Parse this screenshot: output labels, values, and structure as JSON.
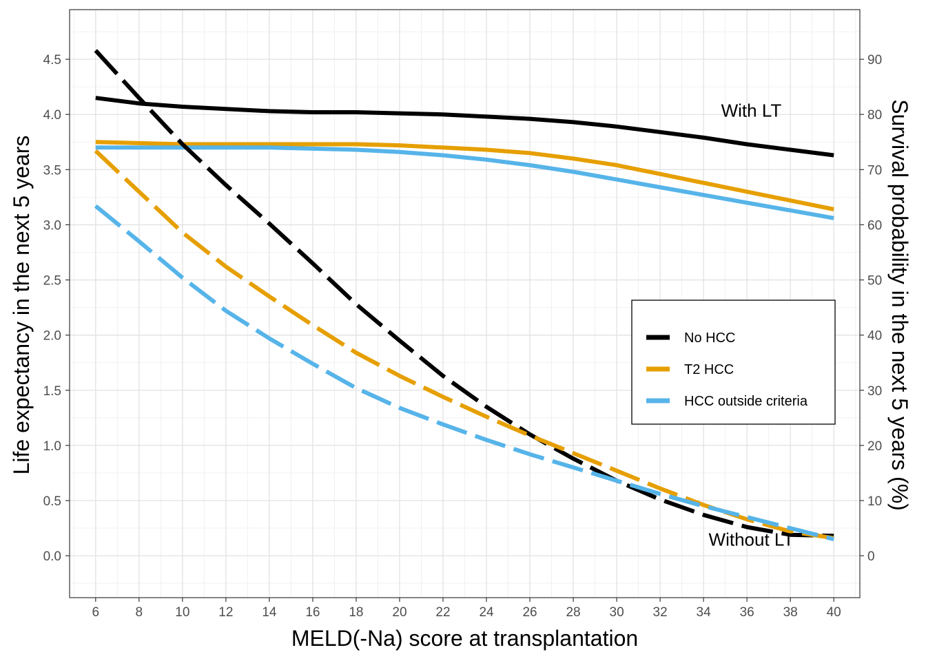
{
  "chart_data": {
    "type": "line",
    "xlabel": "MELD(-Na) score at transplantation",
    "ylabel": "Life expectancy in the next 5 years",
    "y2label": "Survival probability in the next 5 years (%)",
    "xlim": [
      4.8,
      41.2
    ],
    "ylim": [
      -0.38,
      4.95
    ],
    "x_ticks": [
      6,
      8,
      10,
      12,
      14,
      16,
      18,
      20,
      22,
      24,
      26,
      28,
      30,
      32,
      34,
      36,
      38,
      40
    ],
    "y_ticks": [
      0.0,
      0.5,
      1.0,
      1.5,
      2.0,
      2.5,
      3.0,
      3.5,
      4.0,
      4.5
    ],
    "y_tick_labels": [
      "0.0",
      "0.5",
      "1.0",
      "1.5",
      "2.0",
      "2.5",
      "3.0",
      "3.5",
      "4.0",
      "4.5"
    ],
    "y2_ticks": [
      0,
      10,
      20,
      30,
      40,
      50,
      60,
      70,
      80,
      90
    ],
    "y2_scale": 20,
    "grid": true,
    "legend_position": "right",
    "x": [
      6,
      8,
      10,
      12,
      14,
      16,
      18,
      20,
      22,
      24,
      26,
      28,
      30,
      32,
      34,
      36,
      38,
      40
    ],
    "series": [
      {
        "name": "No HCC",
        "group": "With LT",
        "color": "#000000",
        "dashed": false,
        "values": [
          4.15,
          4.1,
          4.07,
          4.05,
          4.03,
          4.02,
          4.02,
          4.01,
          4.0,
          3.98,
          3.96,
          3.93,
          3.89,
          3.84,
          3.79,
          3.73,
          3.68,
          3.63
        ]
      },
      {
        "name": "T2 HCC",
        "group": "With LT",
        "color": "#E69F00",
        "dashed": false,
        "values": [
          3.75,
          3.74,
          3.73,
          3.73,
          3.73,
          3.73,
          3.73,
          3.72,
          3.7,
          3.68,
          3.65,
          3.6,
          3.54,
          3.46,
          3.38,
          3.3,
          3.22,
          3.14
        ]
      },
      {
        "name": "HCC outside criteria",
        "group": "With LT",
        "color": "#56B4E9",
        "dashed": false,
        "values": [
          3.7,
          3.7,
          3.7,
          3.7,
          3.7,
          3.69,
          3.68,
          3.66,
          3.63,
          3.59,
          3.54,
          3.48,
          3.41,
          3.34,
          3.27,
          3.2,
          3.13,
          3.06
        ]
      },
      {
        "name": "No HCC",
        "group": "Without LT",
        "color": "#000000",
        "dashed": true,
        "values": [
          4.58,
          4.15,
          3.73,
          3.36,
          3.01,
          2.65,
          2.28,
          1.95,
          1.63,
          1.35,
          1.1,
          0.88,
          0.68,
          0.51,
          0.37,
          0.26,
          0.19,
          0.18
        ]
      },
      {
        "name": "T2 HCC",
        "group": "Without LT",
        "color": "#E69F00",
        "dashed": true,
        "values": [
          3.67,
          3.3,
          2.93,
          2.62,
          2.35,
          2.09,
          1.84,
          1.63,
          1.44,
          1.26,
          1.09,
          0.93,
          0.77,
          0.61,
          0.46,
          0.33,
          0.22,
          0.16
        ]
      },
      {
        "name": "HCC outside criteria",
        "group": "Without LT",
        "color": "#56B4E9",
        "dashed": true,
        "values": [
          3.17,
          2.85,
          2.52,
          2.22,
          1.97,
          1.74,
          1.52,
          1.34,
          1.19,
          1.05,
          0.92,
          0.8,
          0.68,
          0.56,
          0.45,
          0.35,
          0.25,
          0.15
        ]
      }
    ],
    "legend": [
      {
        "label": "No HCC",
        "color": "#000000"
      },
      {
        "label": "T2 HCC",
        "color": "#E69F00"
      },
      {
        "label": "HCC outside criteria",
        "color": "#56B4E9"
      }
    ],
    "annotations": [
      {
        "text": "With LT",
        "x": 36.2,
        "y": 3.98
      },
      {
        "text": "Without LT",
        "x": 36.2,
        "y": 0.09
      }
    ]
  }
}
